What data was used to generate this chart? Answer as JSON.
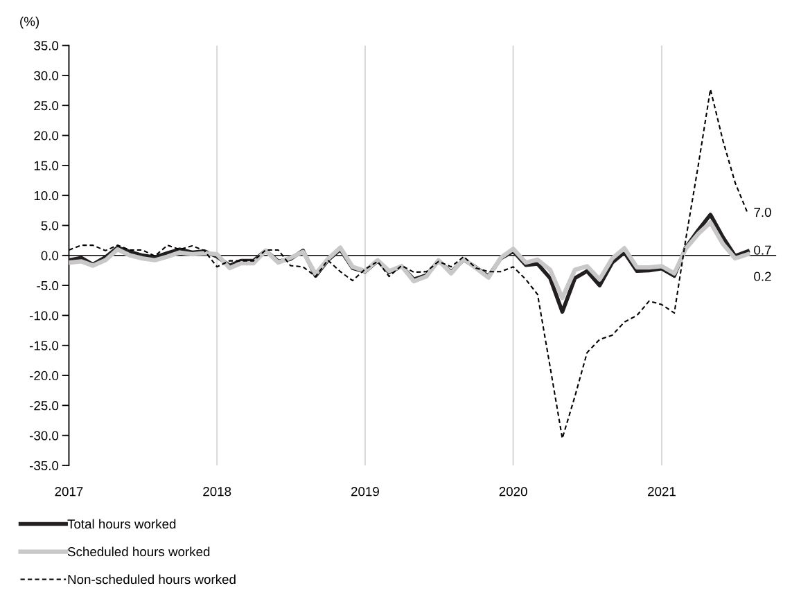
{
  "chart_data": {
    "type": "line",
    "ylabel": "(%)",
    "x": [
      "2017-01",
      "2017-02",
      "2017-03",
      "2017-04",
      "2017-05",
      "2017-06",
      "2017-07",
      "2017-08",
      "2017-09",
      "2017-10",
      "2017-11",
      "2017-12",
      "2018-01",
      "2018-02",
      "2018-03",
      "2018-04",
      "2018-05",
      "2018-06",
      "2018-07",
      "2018-08",
      "2018-09",
      "2018-10",
      "2018-11",
      "2018-12",
      "2019-01",
      "2019-02",
      "2019-03",
      "2019-04",
      "2019-05",
      "2019-06",
      "2019-07",
      "2019-08",
      "2019-09",
      "2019-10",
      "2019-11",
      "2019-12",
      "2020-01",
      "2020-02",
      "2020-03",
      "2020-04",
      "2020-05",
      "2020-06",
      "2020-07",
      "2020-08",
      "2020-09",
      "2020-10",
      "2020-11",
      "2020-12",
      "2021-01",
      "2021-02",
      "2021-03",
      "2021-04",
      "2021-05",
      "2021-06",
      "2021-07",
      "2021-08"
    ],
    "series": [
      {
        "name": "Total hours worked",
        "color": "#231f20",
        "line_style": "solid",
        "values": [
          -0.8,
          -0.4,
          -1.5,
          -0.3,
          1.3,
          0.6,
          0.0,
          -0.3,
          0.4,
          1.0,
          0.5,
          0.7,
          -0.2,
          -1.7,
          -0.9,
          -0.9,
          0.8,
          -1.0,
          -0.6,
          0.8,
          -3.4,
          -0.8,
          1.0,
          -2.1,
          -2.7,
          -0.9,
          -2.8,
          -1.8,
          -4.0,
          -3.3,
          -0.9,
          -2.8,
          -0.7,
          -2.0,
          -3.5,
          -0.5,
          0.7,
          -1.6,
          -1.4,
          -3.8,
          -9.4,
          -3.8,
          -2.6,
          -5.0,
          -1.2,
          0.5,
          -2.6,
          -2.5,
          -2.2,
          -3.4,
          1.3,
          4.2,
          6.8,
          3.0,
          -0.1,
          0.7
        ]
      },
      {
        "name": "Scheduled hours worked",
        "color": "#c8c8c8",
        "line_style": "solid",
        "values": [
          -1.2,
          -1.0,
          -1.7,
          -0.8,
          1.0,
          0.0,
          -0.5,
          -0.8,
          -0.2,
          0.5,
          0.2,
          0.4,
          0.2,
          -2.1,
          -1.3,
          -1.3,
          0.8,
          -1.2,
          -0.4,
          0.6,
          -3.1,
          -0.6,
          1.3,
          -1.9,
          -2.6,
          -0.8,
          -2.6,
          -1.8,
          -4.3,
          -3.5,
          -0.8,
          -3.0,
          -0.6,
          -2.1,
          -3.7,
          -0.4,
          1.1,
          -1.2,
          -0.7,
          -2.4,
          -7.1,
          -2.4,
          -1.8,
          -4.0,
          -0.5,
          1.2,
          -2.0,
          -2.0,
          -1.8,
          -3.0,
          1.1,
          3.6,
          5.5,
          1.9,
          -0.5,
          0.2
        ]
      },
      {
        "name": "Non-scheduled hours worked",
        "color": "#000000",
        "line_style": "dashed",
        "values": [
          0.9,
          1.7,
          1.7,
          0.8,
          1.7,
          0.9,
          0.9,
          -0.1,
          1.7,
          1.0,
          1.6,
          0.8,
          -1.9,
          -0.9,
          -0.9,
          -0.9,
          0.9,
          0.9,
          -1.7,
          -1.9,
          -3.5,
          -0.8,
          -2.7,
          -4.2,
          -2.3,
          -1.0,
          -3.5,
          -1.7,
          -2.8,
          -2.7,
          -1.0,
          -1.9,
          -0.2,
          -2.1,
          -2.7,
          -2.7,
          -1.9,
          -4.0,
          -6.5,
          -18.6,
          -30.5,
          -23.5,
          -16.2,
          -14.0,
          -13.3,
          -11.1,
          -10.0,
          -7.6,
          -8.2,
          -9.6,
          2.6,
          15.0,
          27.7,
          19.1,
          12.1,
          7.0
        ]
      }
    ],
    "annotations": [
      {
        "text": "7.0",
        "x": "2021-08",
        "y": 7.0
      },
      {
        "text": "0.7",
        "x": "2021-08",
        "y": 0.7
      },
      {
        "text": "0.2",
        "x": "2021-08",
        "y": 0.2
      }
    ],
    "xlim": [
      "2017-01-01",
      "2021-10-10"
    ],
    "xticks": [
      {
        "value": "2017-01-01",
        "label": "2017"
      },
      {
        "value": "2018-01-01",
        "label": "2018"
      },
      {
        "value": "2019-01-01",
        "label": "2019"
      },
      {
        "value": "2020-01-01",
        "label": "2020"
      },
      {
        "value": "2021-01-01",
        "label": "2021"
      }
    ],
    "ylim": [
      -35,
      35
    ],
    "yticks": [
      {
        "value": 35,
        "label": "35.0"
      },
      {
        "value": 30,
        "label": "30.0"
      },
      {
        "value": 25,
        "label": "25.0"
      },
      {
        "value": 20,
        "label": "20.0"
      },
      {
        "value": 15,
        "label": "15.0"
      },
      {
        "value": 10,
        "label": "10.0"
      },
      {
        "value": 5,
        "label": "5.0"
      },
      {
        "value": 0,
        "label": "0.0"
      },
      {
        "value": -5,
        "label": "-5.0"
      },
      {
        "value": -10,
        "label": "-10.0"
      },
      {
        "value": -15,
        "label": "-15.0"
      },
      {
        "value": -20,
        "label": "-20.0"
      },
      {
        "value": -25,
        "label": "-25.0"
      },
      {
        "value": -30,
        "label": "-30.0"
      },
      {
        "value": -35,
        "label": "-35.0"
      }
    ],
    "ref_lines": [
      {
        "axis": "y",
        "value": 0,
        "color": "#231f20"
      }
    ],
    "grid": "x",
    "legend": "bottom left"
  }
}
